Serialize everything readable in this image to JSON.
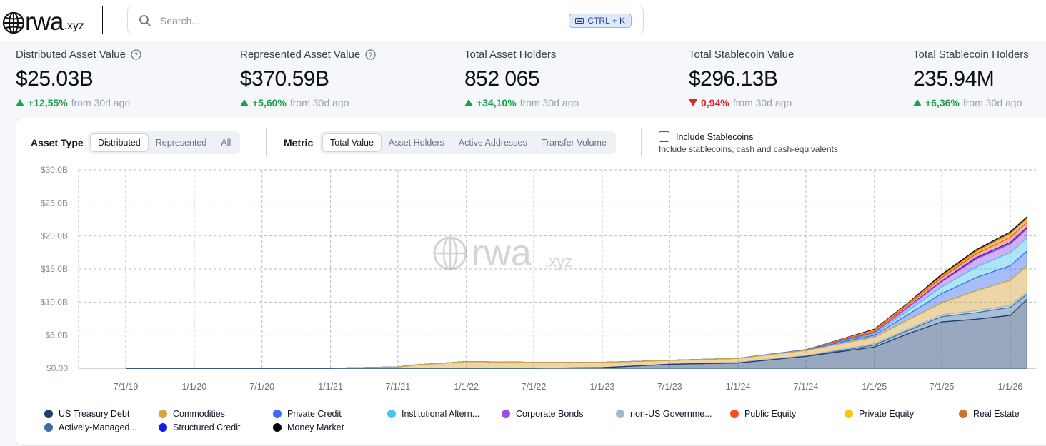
{
  "header": {
    "logo_text": "rwa",
    "logo_suffix": ".xyz",
    "search_placeholder": "Search...",
    "shortcut": "CTRL + K"
  },
  "stats": [
    {
      "label": "Distributed Asset Value",
      "value": "$25.03B",
      "change": "+12,55%",
      "direction": "up",
      "suffix": "from 30d ago",
      "help": true
    },
    {
      "label": "Represented Asset Value",
      "value": "$370.59B",
      "change": "+5,60%",
      "direction": "up",
      "suffix": "from 30d ago",
      "help": true
    },
    {
      "label": "Total Asset Holders",
      "value": "852 065",
      "change": "+34,10%",
      "direction": "up",
      "suffix": "from 30d ago",
      "help": false
    },
    {
      "label": "Total Stablecoin Value",
      "value": "$296.13B",
      "change": "0,94%",
      "direction": "down",
      "suffix": "from 30d ago",
      "help": false
    },
    {
      "label": "Total Stablecoin Holders",
      "value": "235.94M",
      "change": "+6,36%",
      "direction": "up",
      "suffix": "from 30d ago",
      "help": false
    }
  ],
  "controls": {
    "asset_type_label": "Asset Type",
    "asset_type_options": [
      "Distributed",
      "Represented",
      "All"
    ],
    "asset_type_selected": "Distributed",
    "metric_label": "Metric",
    "metric_options": [
      "Total Value",
      "Asset Holders",
      "Active Addresses",
      "Transfer Volume"
    ],
    "metric_selected": "Total Value",
    "include_stablecoins_label": "Include Stablecoins",
    "include_stablecoins_desc": "Include stablecoins, cash and cash-equivalents",
    "include_stablecoins_checked": false
  },
  "watermark": {
    "text": "rwa",
    "suffix": ".xyz"
  },
  "chart_data": {
    "type": "area",
    "stacked": true,
    "y_ticks": [
      "$0.00",
      "$5.0B",
      "$10.0B",
      "$15.0B",
      "$20.0B",
      "$25.0B",
      "$30.0B"
    ],
    "ylim": [
      0,
      30
    ],
    "x_ticks": [
      "7/1/19",
      "1/1/20",
      "7/1/20",
      "1/1/21",
      "7/1/21",
      "1/1/22",
      "7/1/22",
      "1/1/23",
      "7/1/23",
      "1/1/24",
      "7/1/24",
      "1/1/25",
      "7/1/25",
      "1/1/26"
    ],
    "grid": true,
    "x": [
      "2019-07-01",
      "2020-01-01",
      "2020-07-01",
      "2021-01-01",
      "2021-07-01",
      "2021-08-15",
      "2022-01-01",
      "2022-07-01",
      "2023-01-01",
      "2023-07-01",
      "2024-01-01",
      "2024-07-01",
      "2025-01-01",
      "2025-04-01",
      "2025-07-01",
      "2025-10-01",
      "2026-01-01",
      "2026-02-15"
    ],
    "series": [
      {
        "name": "US Treasury Debt",
        "color": "#1c3f6e",
        "values": [
          0,
          0,
          0,
          0,
          0,
          0,
          0,
          0,
          0.1,
          0.6,
          0.8,
          1.8,
          3.2,
          5.2,
          7.0,
          7.4,
          8.0,
          10.4
        ]
      },
      {
        "name": "Actively-Managed...",
        "color": "#3b6ea3",
        "values": [
          0,
          0,
          0,
          0,
          0,
          0,
          0,
          0,
          0,
          0,
          0,
          0,
          0.3,
          0.5,
          0.8,
          1.0,
          1.2,
          0.8
        ]
      },
      {
        "name": "non-US Governme...",
        "color": "#a6b6cc",
        "values": [
          0,
          0,
          0,
          0,
          0,
          0,
          0,
          0,
          0,
          0,
          0.1,
          0.1,
          0.2,
          0.2,
          0.3,
          0.3,
          0.3,
          0.3
        ]
      },
      {
        "name": "Commodities",
        "color": "#d4a53a",
        "values": [
          0,
          0,
          0,
          0,
          0.2,
          0.5,
          1.0,
          0.9,
          0.8,
          0.6,
          0.6,
          0.8,
          1.0,
          1.4,
          1.8,
          3.0,
          3.8,
          4.0
        ]
      },
      {
        "name": "Private Credit",
        "color": "#3a6ff0",
        "values": [
          0,
          0,
          0,
          0,
          0,
          0,
          0,
          0,
          0,
          0,
          0,
          0.1,
          0.3,
          0.8,
          1.4,
          2.0,
          2.2,
          2.2
        ]
      },
      {
        "name": "Institutional Altern...",
        "color": "#4cc6ec",
        "values": [
          0,
          0,
          0,
          0,
          0,
          0,
          0,
          0,
          0,
          0,
          0,
          0,
          0.2,
          0.6,
          1.0,
          1.6,
          2.0,
          2.0
        ]
      },
      {
        "name": "Corporate Bonds",
        "color": "#9b4dea",
        "values": [
          0,
          0,
          0,
          0,
          0,
          0,
          0,
          0,
          0,
          0,
          0,
          0,
          0.2,
          0.5,
          0.8,
          1.2,
          1.3,
          1.4
        ]
      },
      {
        "name": "Structured Credit",
        "color": "#1a1ae6",
        "values": [
          0,
          0,
          0,
          0,
          0,
          0,
          0,
          0,
          0,
          0,
          0,
          0,
          0,
          0.05,
          0.1,
          0.2,
          0.2,
          0.2
        ]
      },
      {
        "name": "Public Equity",
        "color": "#f25022",
        "values": [
          0,
          0,
          0,
          0,
          0,
          0,
          0,
          0,
          0,
          0,
          0,
          0,
          0.2,
          0.3,
          0.5,
          0.6,
          0.8,
          0.8
        ]
      },
      {
        "name": "Private Equity",
        "color": "#f2c811",
        "values": [
          0,
          0,
          0,
          0,
          0,
          0,
          0,
          0,
          0,
          0,
          0,
          0,
          0.1,
          0.1,
          0.1,
          0.2,
          0.3,
          0.3
        ]
      },
      {
        "name": "Real Estate",
        "color": "#d1712a",
        "values": [
          0,
          0,
          0,
          0,
          0,
          0,
          0,
          0,
          0,
          0,
          0,
          0,
          0.1,
          0.1,
          0.2,
          0.2,
          0.3,
          0.3
        ]
      },
      {
        "name": "Money Market",
        "color": "#000000",
        "values": [
          0,
          0,
          0,
          0,
          0,
          0,
          0,
          0,
          0,
          0,
          0,
          0,
          0.1,
          0.1,
          0.2,
          0.2,
          0.2,
          0.2
        ]
      }
    ],
    "legend_placement": "bottom"
  },
  "legend": [
    {
      "name": "US Treasury Debt",
      "color": "#1c3f6e"
    },
    {
      "name": "Commodities",
      "color": "#d4a53a"
    },
    {
      "name": "Private Credit",
      "color": "#3a6ff0"
    },
    {
      "name": "Institutional Altern...",
      "color": "#4cc6ec"
    },
    {
      "name": "Corporate Bonds",
      "color": "#9b4dea"
    },
    {
      "name": "non-US Governme...",
      "color": "#a6b6cc"
    },
    {
      "name": "Public Equity",
      "color": "#f25022"
    },
    {
      "name": "Private Equity",
      "color": "#f2c811"
    },
    {
      "name": "Real Estate",
      "color": "#d1712a"
    },
    {
      "name": "Actively-Managed...",
      "color": "#3b6ea3"
    },
    {
      "name": "Structured Credit",
      "color": "#1a1ae6"
    },
    {
      "name": "Money Market",
      "color": "#000000"
    }
  ]
}
